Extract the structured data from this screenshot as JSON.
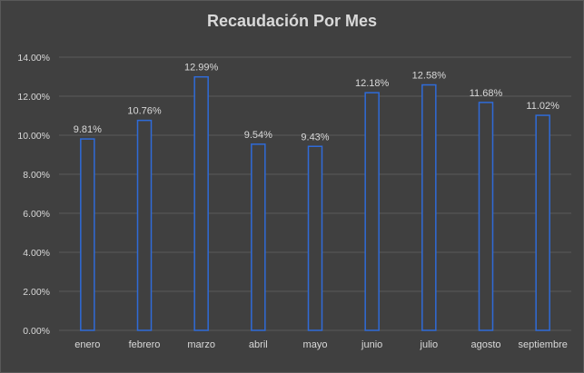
{
  "chart_data": {
    "type": "bar",
    "title": "Recaudación Por Mes",
    "xlabel": "",
    "ylabel": "",
    "categories": [
      "enero",
      "febrero",
      "marzo",
      "abril",
      "mayo",
      "junio",
      "julio",
      "agosto",
      "septiembre"
    ],
    "values": [
      9.81,
      10.76,
      12.99,
      9.54,
      9.43,
      12.18,
      12.58,
      11.68,
      11.02
    ],
    "value_labels": [
      "9.81%",
      "10.76%",
      "12.99%",
      "9.54%",
      "9.43%",
      "12.18%",
      "12.58%",
      "11.68%",
      "11.02%"
    ],
    "ylim": [
      0,
      14
    ],
    "yticks": [
      0,
      2,
      4,
      6,
      8,
      10,
      12,
      14
    ],
    "ytick_labels": [
      "0.00%",
      "2.00%",
      "4.00%",
      "6.00%",
      "8.00%",
      "10.00%",
      "12.00%",
      "14.00%"
    ],
    "grid": true,
    "legend": "none",
    "colors": {
      "background": "#404040",
      "bar_fill": "#404040",
      "bar_stroke": "#2f6bd8",
      "text": "#d9d9d9",
      "grid": "#5a5a5a"
    }
  }
}
